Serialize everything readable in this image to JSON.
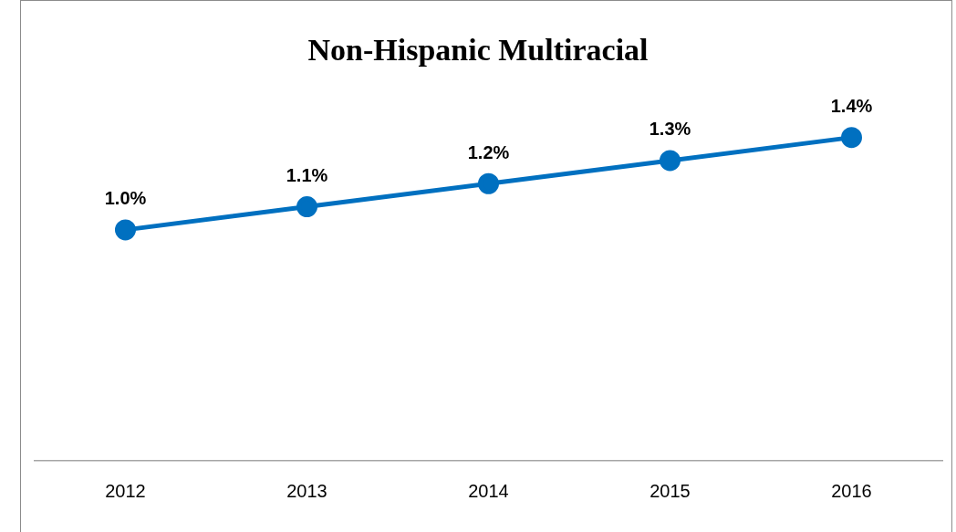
{
  "chart_data": {
    "type": "line",
    "title": "Non-Hispanic Multiracial",
    "categories": [
      "2012",
      "2013",
      "2014",
      "2015",
      "2016"
    ],
    "series": [
      {
        "color": "#0070c0",
        "values": [
          1.0,
          1.1,
          1.2,
          1.3,
          1.4
        ],
        "value_labels": [
          "1.0%",
          "1.1%",
          "1.2%",
          "1.3%",
          "1.4%"
        ]
      }
    ],
    "data_labels": true,
    "marker": "circle",
    "line_style": "solid",
    "grid": false,
    "legend": false,
    "tick_labels": "x"
  }
}
